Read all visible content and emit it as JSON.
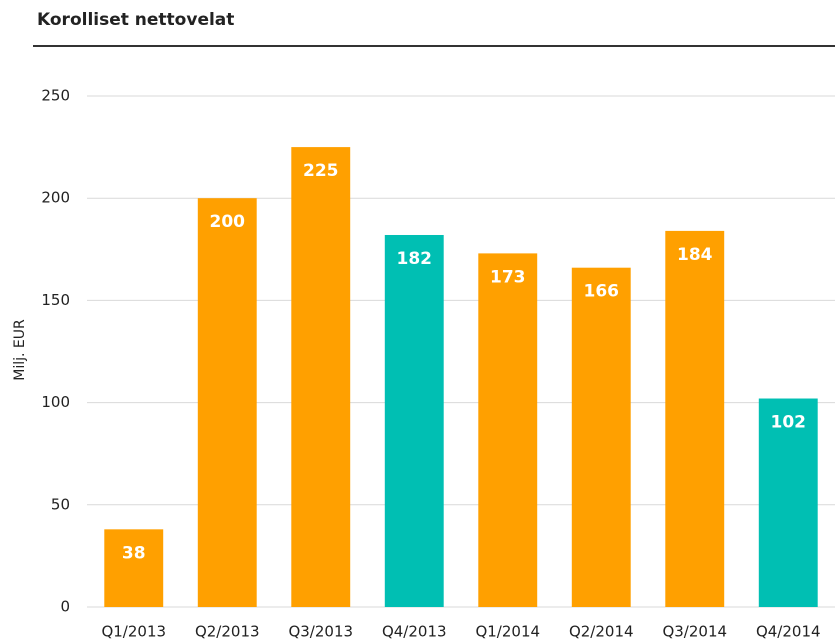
{
  "chart_data": {
    "type": "bar",
    "title": "Korolliset nettovelat",
    "y_label": "Milj. EUR",
    "categories": [
      "Q1/2013",
      "Q2/2013",
      "Q3/2013",
      "Q4/2013",
      "Q1/2014",
      "Q2/2014",
      "Q3/2014",
      "Q4/2014"
    ],
    "values": [
      38,
      200,
      225,
      182,
      173,
      166,
      184,
      102
    ],
    "colors": [
      "#ffa000",
      "#ffa000",
      "#ffa000",
      "#00bfb3",
      "#ffa000",
      "#ffa000",
      "#ffa000",
      "#00bfb3"
    ],
    "ylim": [
      0,
      250
    ],
    "yticks": [
      0,
      50,
      100,
      150,
      200,
      250
    ],
    "grid": true
  }
}
